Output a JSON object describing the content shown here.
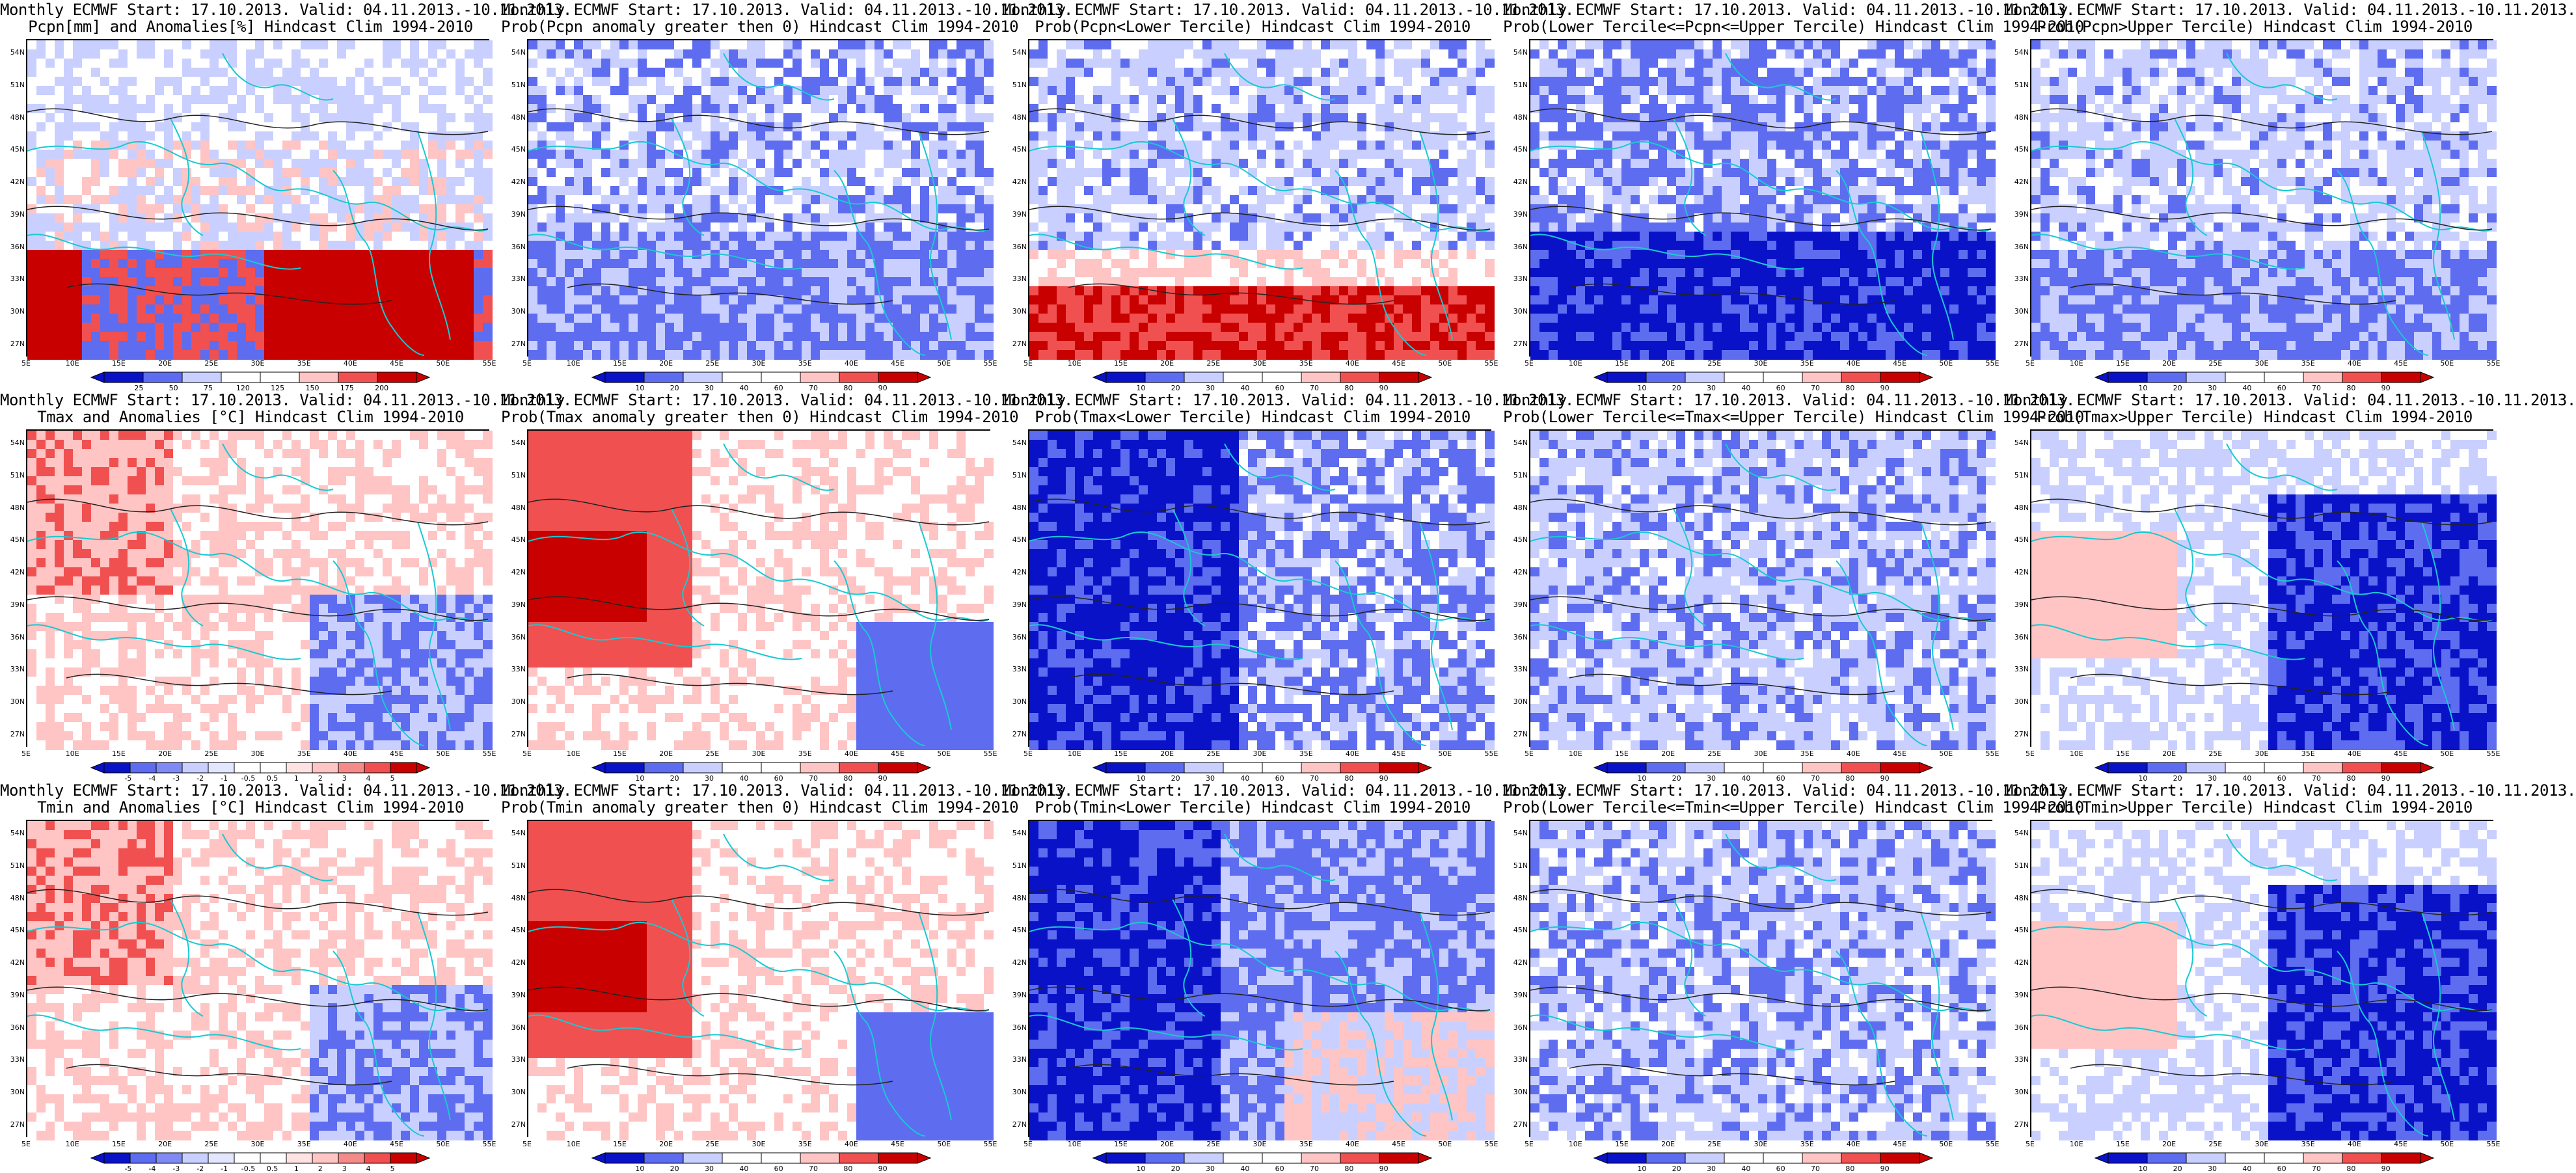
{
  "figure": {
    "columns": 5,
    "rows": 3
  },
  "colors": {
    "coast": "#19c9d2",
    "contour": "#222222",
    "blue_dark": "#0a12c8",
    "blue_mid": "#5e6cf0",
    "blue_light": "#c9d0ff",
    "white": "#ffffff",
    "red_light": "#ffc4c4",
    "red_mid": "#f05050",
    "red_dark": "#c80000"
  },
  "axes": {
    "lat_labels": [
      "54N",
      "51N",
      "48N",
      "45N",
      "42N",
      "39N",
      "36N",
      "33N",
      "30N",
      "27N"
    ],
    "lon_labels": [
      "5E",
      "10E",
      "15E",
      "20E",
      "25E",
      "30E",
      "35E",
      "40E",
      "45E",
      "50E",
      "55E"
    ]
  },
  "colorbars": {
    "pcpn_anom": [
      "25",
      "50",
      "75",
      "120",
      "125",
      "150",
      "175",
      "200"
    ],
    "prob": [
      "10",
      "20",
      "30",
      "40",
      "60",
      "70",
      "80",
      "90"
    ],
    "temp_anom": [
      "-5",
      "-4",
      "-3",
      "-2",
      "-1",
      "-0.5",
      "0.5",
      "1",
      "2",
      "3",
      "4",
      "5"
    ]
  },
  "panels": [
    {
      "line1": "Monthly ECMWF Start: 17.10.2013. Valid: 04.11.2013.-10.11.2013.",
      "line2": "Pcpn[mm] and Anomalies[%] Hindcast Clim 1994-2010",
      "cbar": "pcpn_anom",
      "pattern": "pcpn_anom"
    },
    {
      "line1": "Monthly ECMWF Start: 17.10.2013. Valid: 04.11.2013.-10.11.2013.",
      "line2": "Prob(Pcpn anomaly greater then 0) Hindcast Clim 1994-2010",
      "cbar": "prob",
      "pattern": "pcpn_gt0"
    },
    {
      "line1": "Monthly ECMWF Start: 17.10.2013. Valid: 04.11.2013.-10.11.2013.",
      "line2": "Prob(Pcpn<Lower Tercile) Hindcast Clim 1994-2010",
      "cbar": "prob",
      "pattern": "pcpn_lower"
    },
    {
      "line1": "Monthly ECMWF Start: 17.10.2013. Valid: 04.11.2013.-10.11.2013.",
      "line2": "Prob(Lower Tercile<=Pcpn<=Upper Tercile) Hindcast Clim 1994-2010",
      "cbar": "prob",
      "pattern": "pcpn_mid"
    },
    {
      "line1": "Monthly ECMWF Start: 17.10.2013. Valid: 04.11.2013.-10.11.2013.",
      "line2": "Prob(Pcpn>Upper Tercile) Hindcast Clim 1994-2010",
      "cbar": "prob",
      "pattern": "pcpn_upper"
    },
    {
      "line1": "Monthly ECMWF Start: 17.10.2013. Valid: 04.11.2013.-10.11.2013.",
      "line2": "Tmax and Anomalies [°C] Hindcast Clim 1994-2010",
      "cbar": "temp_anom",
      "pattern": "t_anom"
    },
    {
      "line1": "Monthly ECMWF Start: 17.10.2013. Valid: 04.11.2013.-10.11.2013.",
      "line2": "Prob(Tmax anomaly greater then 0) Hindcast Clim 1994-2010",
      "cbar": "prob",
      "pattern": "t_gt0"
    },
    {
      "line1": "Monthly ECMWF Start: 17.10.2013. Valid: 04.11.2013.-10.11.2013.",
      "line2": "Prob(Tmax<Lower Tercile) Hindcast Clim 1994-2010",
      "cbar": "prob",
      "pattern": "t_lower"
    },
    {
      "line1": "Monthly ECMWF Start: 17.10.2013. Valid: 04.11.2013.-10.11.2013.",
      "line2": "Prob(Lower Tercile<=Tmax<=Upper Tercile) Hindcast Clim 1994-2010",
      "cbar": "prob",
      "pattern": "t_mid"
    },
    {
      "line1": "Monthly ECMWF Start: 17.10.2013. Valid: 04.11.2013.-10.11.2013.",
      "line2": "Prob(Tmax>Upper Tercile) Hindcast Clim 1994-2010",
      "cbar": "prob",
      "pattern": "t_upper"
    },
    {
      "line1": "Monthly ECMWF Start: 17.10.2013. Valid: 04.11.2013.-10.11.2013.",
      "line2": "Tmin and Anomalies [°C] Hindcast Clim 1994-2010",
      "cbar": "temp_anom",
      "pattern": "t_anom"
    },
    {
      "line1": "Monthly ECMWF Start: 17.10.2013. Valid: 04.11.2013.-10.11.2013.",
      "line2": "Prob(Tmin anomaly greater then 0) Hindcast Clim 1994-2010",
      "cbar": "prob",
      "pattern": "t_gt0"
    },
    {
      "line1": "Monthly ECMWF Start: 17.10.2013. Valid: 04.11.2013.-10.11.2013.",
      "line2": "Prob(Tmin<Lower Tercile) Hindcast Clim 1994-2010",
      "cbar": "prob",
      "pattern": "tmin_lower"
    },
    {
      "line1": "Monthly ECMWF Start: 17.10.2013. Valid: 04.11.2013.-10.11.2013.",
      "line2": "Prob(Lower Tercile<=Tmin<=Upper Tercile) Hindcast Clim 1994-2010",
      "cbar": "prob",
      "pattern": "t_mid"
    },
    {
      "line1": "Monthly ECMWF Start: 17.10.2013. Valid: 04.11.2013.-10.11.2013.",
      "line2": "Prob(Tmin>Upper Tercile) Hindcast Clim 1994-2010",
      "cbar": "prob",
      "pattern": "t_upper"
    }
  ]
}
